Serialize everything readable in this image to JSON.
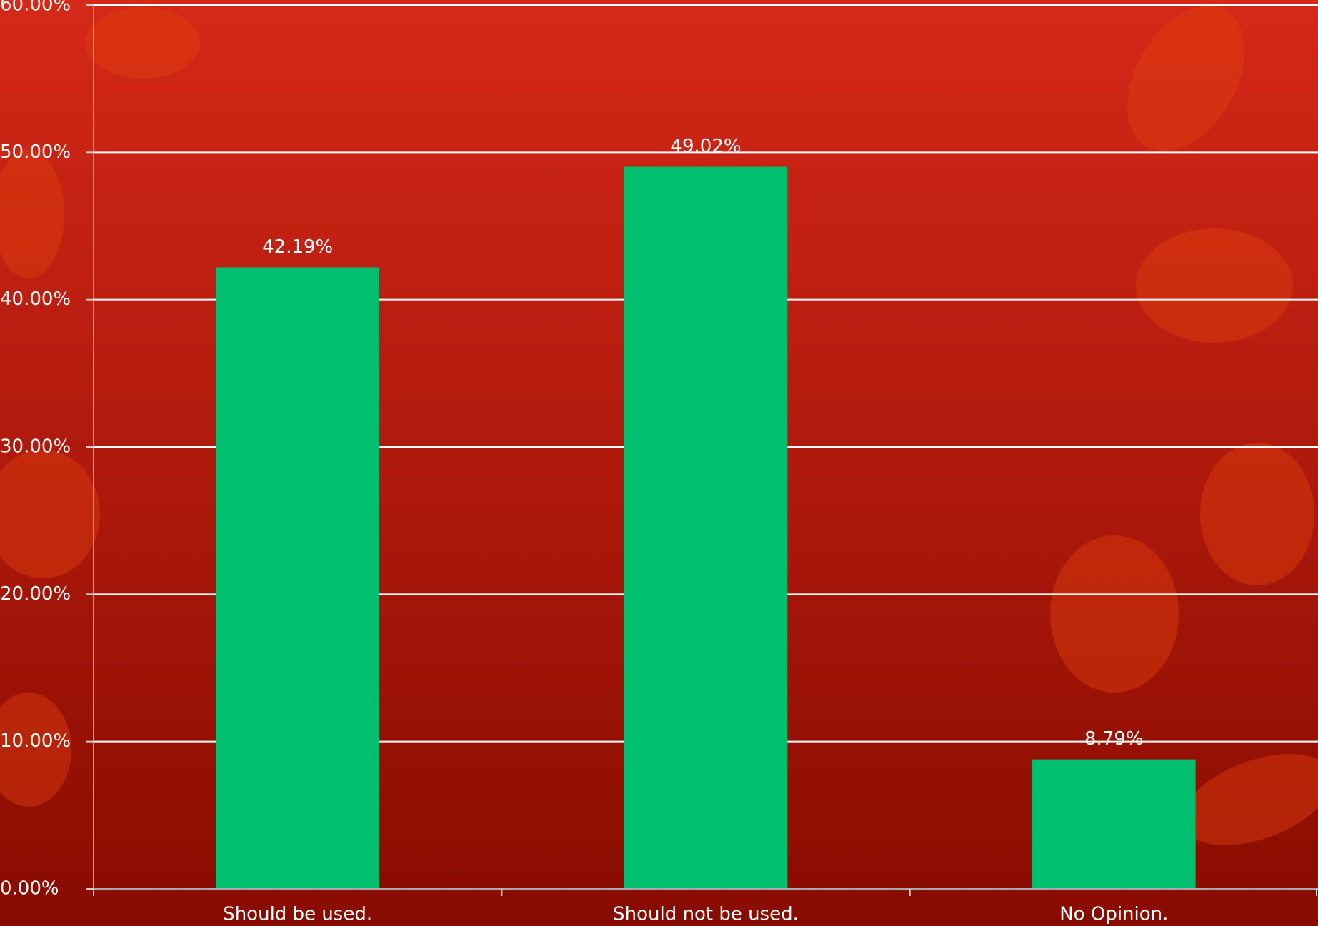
{
  "chart_data": {
    "type": "bar",
    "categories": [
      "Should be used.",
      "Should not be used.",
      "No Opinion."
    ],
    "values": [
      42.19,
      49.02,
      8.79
    ],
    "value_labels": [
      "42.19%",
      "49.02%",
      "8.79%"
    ],
    "color": "#00bf6f",
    "ylim": [
      0,
      60
    ],
    "yticks": [
      {
        "value": 0,
        "label": "0.00%"
      },
      {
        "value": 10,
        "label": "10.00%"
      },
      {
        "value": 20,
        "label": "20.00%"
      },
      {
        "value": 30,
        "label": "30.00%"
      },
      {
        "value": 40,
        "label": "40.00%"
      },
      {
        "value": 50,
        "label": "50.00%"
      },
      {
        "value": 60,
        "label": "60.00%"
      }
    ],
    "grid": true
  }
}
